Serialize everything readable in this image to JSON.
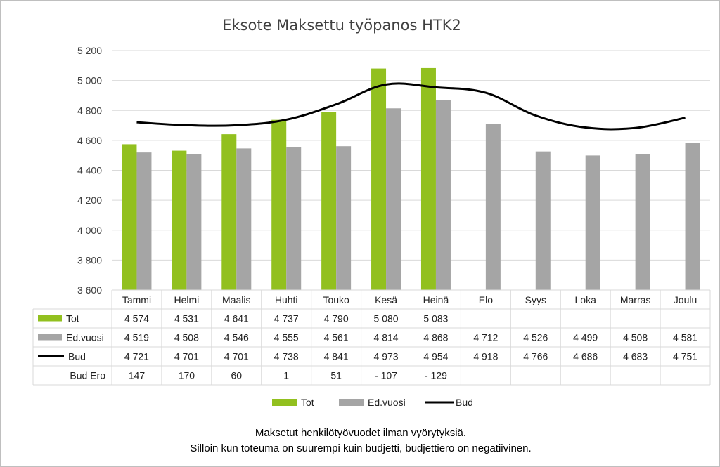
{
  "chart_data": {
    "type": "bar",
    "title": "Eksote Maksettu työpanos HTK2",
    "categories": [
      "Tammi",
      "Helmi",
      "Maalis",
      "Huhti",
      "Touko",
      "Kesä",
      "Heinä",
      "Elo",
      "Syys",
      "Loka",
      "Marras",
      "Joulu"
    ],
    "ylim": [
      3600,
      5200
    ],
    "yticks": [
      3600,
      3800,
      4000,
      4200,
      4400,
      4600,
      4800,
      5000,
      5200
    ],
    "ytick_labels": [
      "3 600",
      "3 800",
      "4 000",
      "4 200",
      "4 400",
      "4 600",
      "4 800",
      "5 000",
      "5 200"
    ],
    "series": [
      {
        "name": "Tot",
        "kind": "bar",
        "color": "#92c01f",
        "values": [
          4574,
          4531,
          4641,
          4737,
          4790,
          5080,
          5083,
          null,
          null,
          null,
          null,
          null
        ],
        "labels": [
          "4 574",
          "4 531",
          "4 641",
          "4 737",
          "4 790",
          "5 080",
          "5 083",
          "",
          "",
          "",
          "",
          ""
        ]
      },
      {
        "name": "Ed.vuosi",
        "kind": "bar",
        "color": "#a5a5a5",
        "values": [
          4519,
          4508,
          4546,
          4555,
          4561,
          4814,
          4868,
          4712,
          4526,
          4499,
          4508,
          4581
        ],
        "labels": [
          "4 519",
          "4 508",
          "4 546",
          "4 555",
          "4 561",
          "4 814",
          "4 868",
          "4 712",
          "4 526",
          "4 499",
          "4 508",
          "4 581"
        ]
      },
      {
        "name": "Bud",
        "kind": "line",
        "color": "#000000",
        "values": [
          4721,
          4701,
          4701,
          4738,
          4841,
          4973,
          4954,
          4918,
          4766,
          4686,
          4683,
          4751
        ],
        "labels": [
          "4 721",
          "4 701",
          "4 701",
          "4 738",
          "4 841",
          "4 973",
          "4 954",
          "4 918",
          "4 766",
          "4 686",
          "4 683",
          "4 751"
        ]
      }
    ],
    "extra_rows": [
      {
        "name": "Bud Ero",
        "labels": [
          "147",
          "170",
          "60",
          "1",
          "51",
          "- 107",
          "- 129",
          "",
          "",
          "",
          "",
          ""
        ]
      }
    ],
    "legend": [
      "Tot",
      "Ed.vuosi",
      "Bud"
    ],
    "legend_position": "bottom",
    "footnote": [
      "Maksetut henkilötyövuodet ilman vyörytyksiä.",
      "Silloin kun toteuma on suurempi kuin budjetti, budjettiero on negatiivinen."
    ]
  }
}
